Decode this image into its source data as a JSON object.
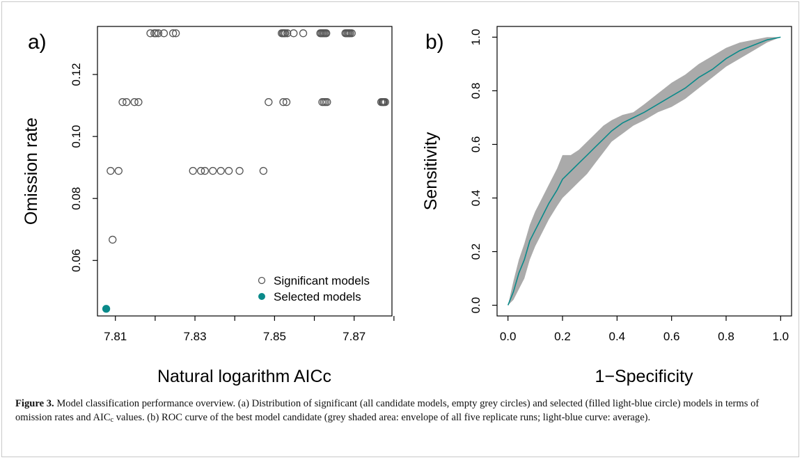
{
  "chart_data": [
    {
      "type": "scatter",
      "panel_label": "a)",
      "xlabel": "Natural logarithm AICc",
      "ylabel": "Omission rate",
      "xlim": [
        7.8055,
        7.8795
      ],
      "ylim": [
        0.0421,
        0.1355
      ],
      "x_ticks": [
        7.81,
        7.83,
        7.85,
        7.87
      ],
      "x_minor_ticks": [
        7.82,
        7.84,
        7.86,
        7.88
      ],
      "x_tick_labels": [
        "7.81",
        "7.83",
        "7.85",
        "7.87"
      ],
      "y_ticks": [
        0.06,
        0.08,
        0.1,
        0.12
      ],
      "y_tick_labels": [
        "0.06",
        "0.08",
        "0.10",
        "0.12"
      ],
      "grid": false,
      "legend_position": "bottom-right",
      "series": [
        {
          "name": "Significant models",
          "marker": "open-circle",
          "color": "#555555",
          "points": [
            [
              7.8188,
              0.1333
            ],
            [
              7.8198,
              0.1333
            ],
            [
              7.8202,
              0.1333
            ],
            [
              7.8208,
              0.1333
            ],
            [
              7.8222,
              0.1333
            ],
            [
              7.8245,
              0.1333
            ],
            [
              7.8252,
              0.1333
            ],
            [
              7.8518,
              0.1333
            ],
            [
              7.8521,
              0.1333
            ],
            [
              7.8524,
              0.1333
            ],
            [
              7.8527,
              0.1333
            ],
            [
              7.8532,
              0.1333
            ],
            [
              7.8548,
              0.1333
            ],
            [
              7.8572,
              0.1333
            ],
            [
              7.8615,
              0.1333
            ],
            [
              7.8618,
              0.1333
            ],
            [
              7.8621,
              0.1333
            ],
            [
              7.8624,
              0.1333
            ],
            [
              7.8627,
              0.1333
            ],
            [
              7.863,
              0.1333
            ],
            [
              7.8678,
              0.1333
            ],
            [
              7.8681,
              0.1333
            ],
            [
              7.8684,
              0.1333
            ],
            [
              7.8687,
              0.1333
            ],
            [
              7.869,
              0.1333
            ],
            [
              7.8694,
              0.1333
            ],
            [
              7.8118,
              0.1111
            ],
            [
              7.8128,
              0.1111
            ],
            [
              7.8148,
              0.1111
            ],
            [
              7.8158,
              0.1111
            ],
            [
              7.8485,
              0.1111
            ],
            [
              7.8522,
              0.1111
            ],
            [
              7.853,
              0.1111
            ],
            [
              7.862,
              0.1111
            ],
            [
              7.8624,
              0.1111
            ],
            [
              7.8628,
              0.1111
            ],
            [
              7.8632,
              0.1111
            ],
            [
              7.8768,
              0.1111
            ],
            [
              7.8771,
              0.1111
            ],
            [
              7.8773,
              0.1111
            ],
            [
              7.8775,
              0.1111
            ],
            [
              7.8778,
              0.1111
            ],
            [
              7.8088,
              0.0889
            ],
            [
              7.8108,
              0.0889
            ],
            [
              7.8295,
              0.0889
            ],
            [
              7.8315,
              0.0889
            ],
            [
              7.8325,
              0.0889
            ],
            [
              7.8345,
              0.0889
            ],
            [
              7.8365,
              0.0889
            ],
            [
              7.8385,
              0.0889
            ],
            [
              7.8412,
              0.0889
            ],
            [
              7.8472,
              0.0889
            ],
            [
              7.8093,
              0.0667
            ]
          ]
        },
        {
          "name": "Selected models",
          "marker": "filled-circle",
          "color": "#0a8a8a",
          "points": [
            [
              7.8077,
              0.0444
            ]
          ]
        }
      ]
    },
    {
      "type": "line",
      "panel_label": "b)",
      "xlabel": "1−Specificity",
      "ylabel": "Sensitivity",
      "xlim": [
        -0.04,
        1.04
      ],
      "ylim": [
        -0.04,
        1.04
      ],
      "x_ticks": [
        0,
        0.2,
        0.4,
        0.6,
        0.8,
        1.0
      ],
      "x_tick_labels": [
        "0.0",
        "0.2",
        "0.4",
        "0.6",
        "0.8",
        "1.0"
      ],
      "y_ticks": [
        0,
        0.2,
        0.4,
        0.6,
        0.8,
        1.0
      ],
      "y_tick_labels": [
        "0.0",
        "0.2",
        "0.4",
        "0.6",
        "0.8",
        "1.0"
      ],
      "grid": false,
      "envelope_color": "#aaaaaa",
      "line_color": "#0a8a8a",
      "series": [
        {
          "role": "envelope",
          "x": [
            0.0,
            0.02,
            0.04,
            0.06,
            0.08,
            0.1,
            0.12,
            0.15,
            0.18,
            0.2,
            0.23,
            0.26,
            0.29,
            0.32,
            0.35,
            0.38,
            0.42,
            0.46,
            0.5,
            0.55,
            0.6,
            0.65,
            0.7,
            0.75,
            0.8,
            0.85,
            0.9,
            0.95,
            1.0
          ],
          "lower": [
            0.0,
            0.02,
            0.06,
            0.1,
            0.17,
            0.22,
            0.26,
            0.32,
            0.37,
            0.4,
            0.43,
            0.46,
            0.49,
            0.53,
            0.57,
            0.61,
            0.64,
            0.67,
            0.69,
            0.72,
            0.74,
            0.77,
            0.81,
            0.85,
            0.89,
            0.92,
            0.95,
            0.98,
            1.0
          ],
          "upper": [
            0.0,
            0.09,
            0.17,
            0.23,
            0.3,
            0.35,
            0.39,
            0.45,
            0.51,
            0.56,
            0.56,
            0.58,
            0.61,
            0.64,
            0.67,
            0.69,
            0.71,
            0.72,
            0.75,
            0.79,
            0.83,
            0.86,
            0.9,
            0.93,
            0.96,
            0.98,
            0.99,
            1.0,
            1.0
          ]
        },
        {
          "role": "mean",
          "x": [
            0.0,
            0.02,
            0.04,
            0.06,
            0.08,
            0.1,
            0.12,
            0.15,
            0.18,
            0.2,
            0.23,
            0.26,
            0.29,
            0.32,
            0.35,
            0.38,
            0.42,
            0.46,
            0.5,
            0.55,
            0.6,
            0.65,
            0.7,
            0.75,
            0.8,
            0.85,
            0.9,
            0.95,
            1.0
          ],
          "y": [
            0.0,
            0.05,
            0.12,
            0.17,
            0.24,
            0.28,
            0.32,
            0.38,
            0.43,
            0.47,
            0.5,
            0.53,
            0.56,
            0.59,
            0.62,
            0.65,
            0.68,
            0.7,
            0.72,
            0.75,
            0.78,
            0.81,
            0.85,
            0.88,
            0.92,
            0.95,
            0.97,
            0.99,
            1.0
          ]
        }
      ]
    }
  ],
  "caption": {
    "label": "Figure 3.",
    "text_1": " Model classification performance overview. (a) Distribution of significant (all candidate models, empty grey circles) and selected (filled light-blue circle) models in terms of omission rates and AIC",
    "sub": "c",
    "text_2": " values. (b) ROC curve of the best model candidate (grey shaded area: envelope of all five replicate runs; light-blue curve: average)."
  }
}
